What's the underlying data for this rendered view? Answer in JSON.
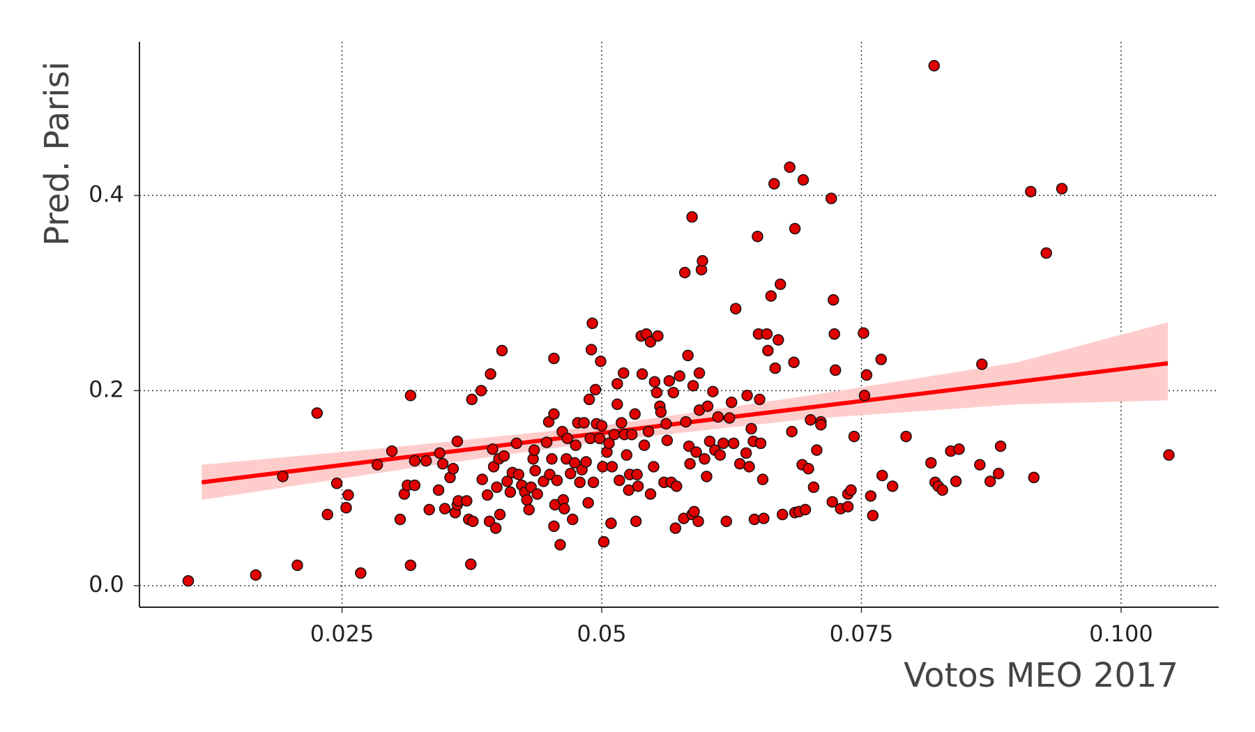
{
  "chart_data": {
    "type": "scatter",
    "x_label": "Votos MEO 2017",
    "y_label": "Pred. Parisi",
    "xlim": [
      0.0055,
      0.1094
    ],
    "ylim": [
      -0.022,
      0.5575
    ],
    "xticks": [
      0.025,
      0.05,
      0.075,
      {
        "value": 0.1,
        "label": "0.100"
      }
    ],
    "yticks": [
      {
        "value": 0,
        "label": "0.0"
      },
      0.2,
      0.4
    ],
    "grid": true,
    "points": {
      "color": "#e00000",
      "x": [
        0.0102,
        0.0167,
        0.0193,
        0.0207,
        0.0226,
        0.0236,
        0.0245,
        0.0254,
        0.0256,
        0.0268,
        0.0284,
        0.0298,
        0.0306,
        0.031,
        0.0313,
        0.0316,
        0.0316,
        0.032,
        0.032,
        0.0331,
        0.0334,
        0.0343,
        0.0344,
        0.0347,
        0.0349,
        0.0354,
        0.0357,
        0.0359,
        0.0361,
        0.0361,
        0.0362,
        0.037,
        0.0372,
        0.0374,
        0.0375,
        0.0376,
        0.0384,
        0.0385,
        0.039,
        0.0392,
        0.0393,
        0.0395,
        0.0396,
        0.0398,
        0.0399,
        0.0401,
        0.0402,
        0.0404,
        0.0406,
        0.0409,
        0.0412,
        0.0414,
        0.0418,
        0.042,
        0.0423,
        0.0426,
        0.0428,
        0.043,
        0.0432,
        0.0434,
        0.0435,
        0.0436,
        0.0438,
        0.0444,
        0.0447,
        0.0449,
        0.045,
        0.0452,
        0.0454,
        0.0454,
        0.0454,
        0.0455,
        0.0457,
        0.046,
        0.0462,
        0.0463,
        0.0464,
        0.0466,
        0.0467,
        0.047,
        0.0472,
        0.0474,
        0.0475,
        0.0477,
        0.0479,
        0.0481,
        0.0483,
        0.0485,
        0.0487,
        0.0488,
        0.0489,
        0.049,
        0.0491,
        0.0492,
        0.0494,
        0.0495,
        0.0498,
        0.0499,
        0.05,
        0.0501,
        0.0502,
        0.0505,
        0.0507,
        0.0509,
        0.051,
        0.0512,
        0.0515,
        0.0515,
        0.0517,
        0.0519,
        0.0521,
        0.0522,
        0.0524,
        0.0526,
        0.0527,
        0.0529,
        0.0532,
        0.0533,
        0.0534,
        0.0535,
        0.0538,
        0.0539,
        0.0541,
        0.0543,
        0.0545,
        0.0547,
        0.0547,
        0.055,
        0.0551,
        0.0553,
        0.0554,
        0.0556,
        0.0557,
        0.056,
        0.0562,
        0.0563,
        0.0565,
        0.0567,
        0.0569,
        0.0571,
        0.0572,
        0.0575,
        0.0579,
        0.058,
        0.0581,
        0.0583,
        0.0584,
        0.0585,
        0.0587,
        0.0587,
        0.0588,
        0.0589,
        0.0591,
        0.0593,
        0.0594,
        0.0594,
        0.0596,
        0.0597,
        0.0599,
        0.0601,
        0.0602,
        0.0604,
        0.0607,
        0.0609,
        0.0612,
        0.0614,
        0.0617,
        0.062,
        0.0623,
        0.0625,
        0.0627,
        0.0629,
        0.0633,
        0.0639,
        0.064,
        0.0642,
        0.0644,
        0.0646,
        0.0647,
        0.065,
        0.0651,
        0.0652,
        0.0653,
        0.0655,
        0.0656,
        0.0659,
        0.066,
        0.0663,
        0.0666,
        0.0667,
        0.067,
        0.0672,
        0.0674,
        0.0681,
        0.0683,
        0.0685,
        0.0686,
        0.0686,
        0.069,
        0.0693,
        0.0694,
        0.0696,
        0.0699,
        0.0701,
        0.0704,
        0.0707,
        0.0711,
        0.0711,
        0.0721,
        0.0722,
        0.0723,
        0.0724,
        0.0725,
        0.073,
        0.0737,
        0.0737,
        0.074,
        0.0743,
        0.0752,
        0.0753,
        0.0755,
        0.0759,
        0.0761,
        0.0769,
        0.077,
        0.078,
        0.0793,
        0.0817,
        0.082,
        0.0821,
        0.0824,
        0.0828,
        0.0836,
        0.0841,
        0.0844,
        0.0864,
        0.0866,
        0.0874,
        0.0882,
        0.0884,
        0.0913,
        0.0916,
        0.0928,
        0.0943,
        0.1046
      ],
      "y": [
        0.005,
        0.011,
        0.112,
        0.021,
        0.177,
        0.073,
        0.105,
        0.08,
        0.093,
        0.013,
        0.124,
        0.138,
        0.068,
        0.094,
        0.103,
        0.195,
        0.021,
        0.103,
        0.128,
        0.128,
        0.078,
        0.098,
        0.136,
        0.125,
        0.079,
        0.111,
        0.12,
        0.075,
        0.083,
        0.148,
        0.087,
        0.087,
        0.068,
        0.022,
        0.191,
        0.066,
        0.2,
        0.109,
        0.093,
        0.066,
        0.217,
        0.14,
        0.122,
        0.059,
        0.101,
        0.13,
        0.073,
        0.241,
        0.133,
        0.107,
        0.096,
        0.116,
        0.146,
        0.114,
        0.103,
        0.096,
        0.088,
        0.078,
        0.101,
        0.13,
        0.139,
        0.118,
        0.094,
        0.107,
        0.147,
        0.168,
        0.114,
        0.13,
        0.233,
        0.061,
        0.176,
        0.083,
        0.108,
        0.042,
        0.158,
        0.088,
        0.079,
        0.13,
        0.151,
        0.115,
        0.068,
        0.126,
        0.144,
        0.167,
        0.106,
        0.119,
        0.167,
        0.127,
        0.085,
        0.191,
        0.151,
        0.242,
        0.269,
        0.106,
        0.201,
        0.166,
        0.151,
        0.23,
        0.164,
        0.122,
        0.045,
        0.137,
        0.146,
        0.064,
        0.122,
        0.155,
        0.186,
        0.207,
        0.108,
        0.167,
        0.218,
        0.155,
        0.134,
        0.098,
        0.114,
        0.155,
        0.176,
        0.066,
        0.114,
        0.102,
        0.256,
        0.217,
        0.144,
        0.258,
        0.158,
        0.094,
        0.25,
        0.122,
        0.209,
        0.198,
        0.256,
        0.184,
        0.178,
        0.106,
        0.166,
        0.149,
        0.21,
        0.106,
        0.198,
        0.059,
        0.102,
        0.215,
        0.069,
        0.321,
        0.168,
        0.236,
        0.143,
        0.125,
        0.073,
        0.378,
        0.205,
        0.076,
        0.137,
        0.066,
        0.218,
        0.18,
        0.324,
        0.333,
        0.13,
        0.112,
        0.184,
        0.148,
        0.199,
        0.139,
        0.173,
        0.134,
        0.146,
        0.066,
        0.172,
        0.188,
        0.146,
        0.284,
        0.125,
        0.136,
        0.195,
        0.122,
        0.161,
        0.148,
        0.068,
        0.358,
        0.258,
        0.191,
        0.146,
        0.109,
        0.069,
        0.258,
        0.241,
        0.297,
        0.412,
        0.223,
        0.252,
        0.309,
        0.073,
        0.429,
        0.158,
        0.229,
        0.075,
        0.366,
        0.076,
        0.124,
        0.416,
        0.078,
        0.12,
        0.17,
        0.101,
        0.139,
        0.168,
        0.165,
        0.397,
        0.086,
        0.293,
        0.258,
        0.221,
        0.079,
        0.081,
        0.094,
        0.098,
        0.153,
        0.259,
        0.195,
        0.216,
        0.092,
        0.072,
        0.232,
        0.113,
        0.102,
        0.153,
        0.126,
        0.533,
        0.106,
        0.102,
        0.098,
        0.138,
        0.107,
        0.14,
        0.124,
        0.227,
        0.107,
        0.115,
        0.143,
        0.404,
        0.111,
        0.341,
        0.407,
        0.134
      ]
    },
    "fit": {
      "color": "#ff0000",
      "x": [
        0.0115,
        0.1045
      ],
      "y": [
        0.106,
        0.228
      ]
    },
    "band": {
      "color": "#ffcccc",
      "x": [
        0.0115,
        0.03,
        0.05,
        0.07,
        0.09,
        0.1045
      ],
      "lower": [
        0.088,
        0.118,
        0.148,
        0.171,
        0.186,
        0.19
      ],
      "upper": [
        0.124,
        0.142,
        0.164,
        0.195,
        0.229,
        0.27
      ]
    }
  }
}
